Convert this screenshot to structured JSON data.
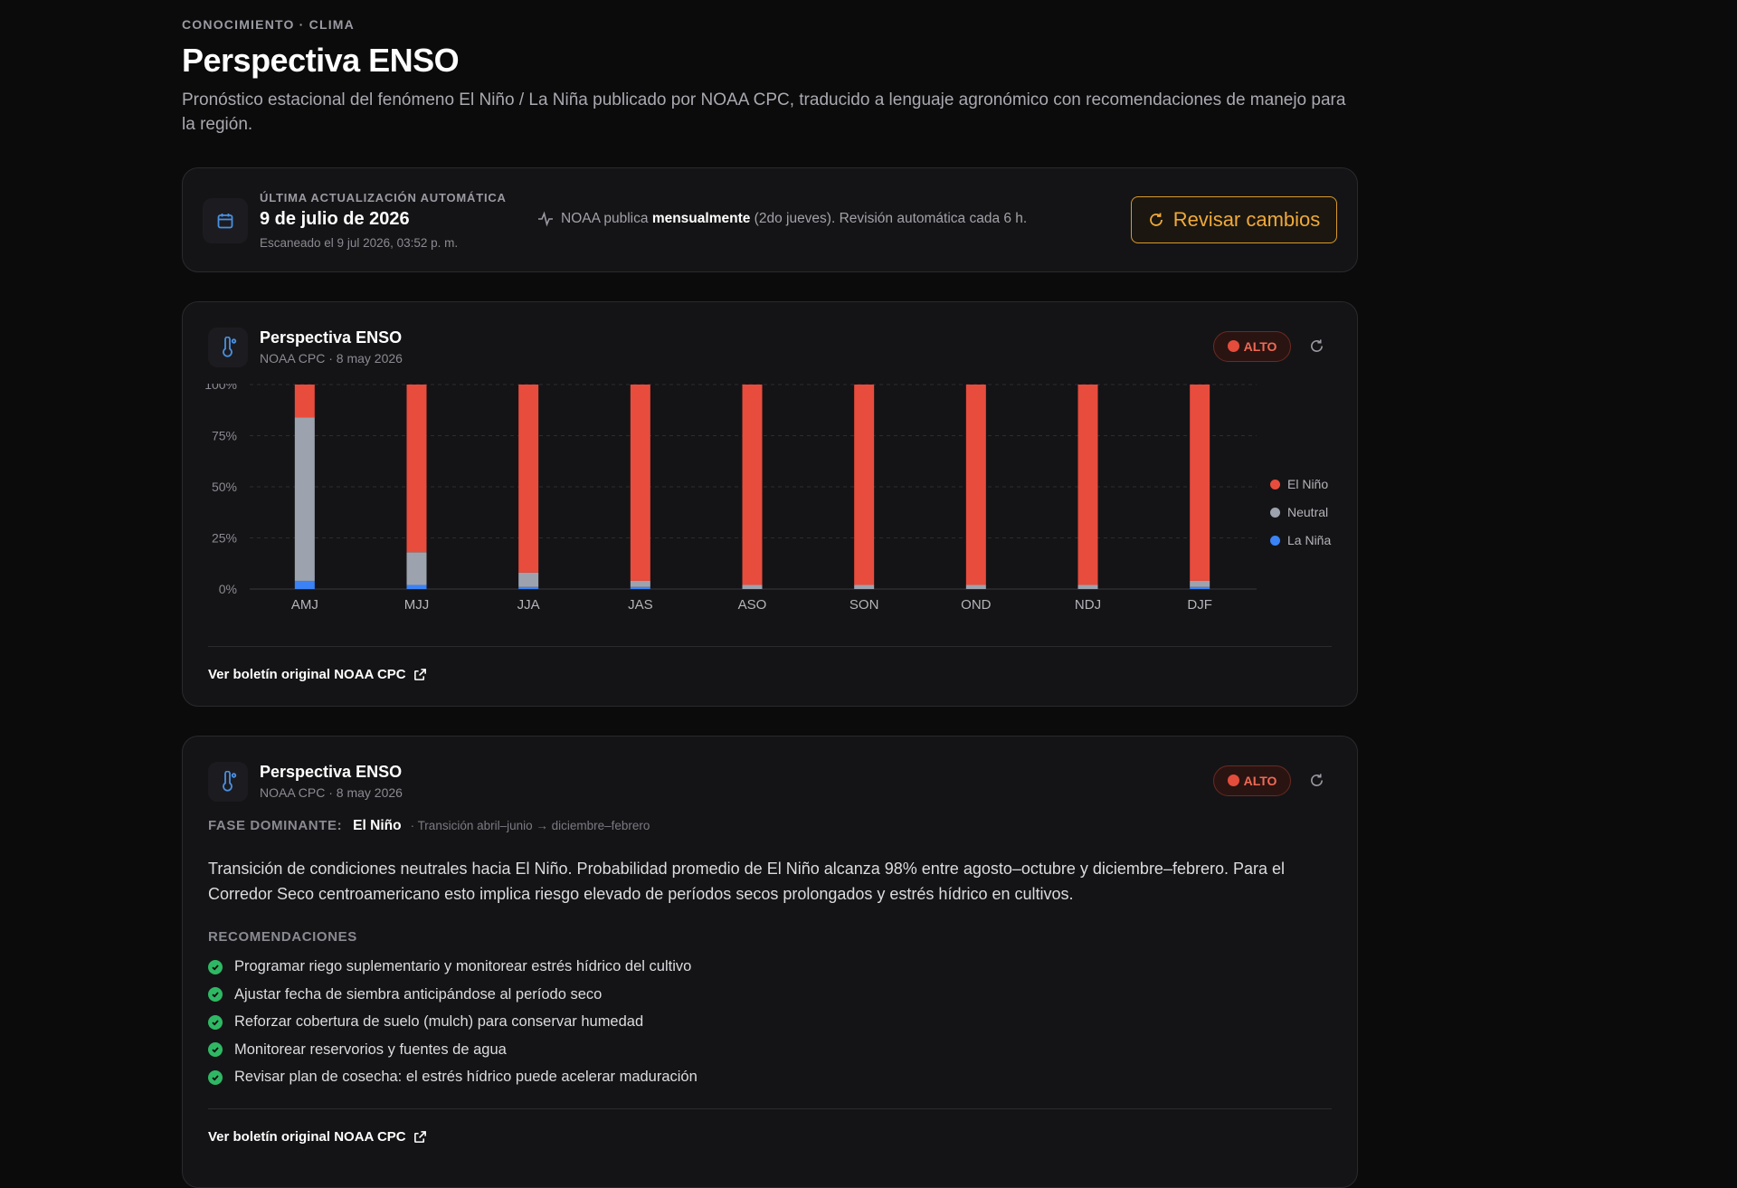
{
  "header": {
    "eyebrow": "CONOCIMIENTO · CLIMA",
    "title": "Perspectiva ENSO",
    "subtitle": "Pronóstico estacional del fenómeno El Niño / La Niña publicado por NOAA CPC, traducido a lenguaje agronómico con recomendaciones de manejo para la región."
  },
  "update": {
    "eyebrow": "ÚLTIMA ACTUALIZACIÓN AUTOMÁTICA",
    "date": "9 de julio de 2026",
    "scanned": "Escaneado el 9 jul 2026, 03:52 p. m.",
    "info_prefix": "NOAA publica",
    "info_bold": "mensualmente",
    "info_suffix": "(2do jueves). Revisión automática cada 6 h.",
    "button_label": "Revisar cambios",
    "accent_color": "#f0a93a"
  },
  "chart_card": {
    "title": "Perspectiva ENSO",
    "meta": "NOAA CPC · 8 may 2026",
    "badge": "ALTO",
    "link": "Ver boletín original NOAA CPC"
  },
  "chart_data": {
    "type": "bar",
    "stacked": true,
    "categories": [
      "AMJ",
      "MJJ",
      "JJA",
      "JAS",
      "ASO",
      "SON",
      "OND",
      "NDJ",
      "DJF"
    ],
    "series": [
      {
        "name": "La Niña",
        "color": "#3b82f6",
        "values": [
          4,
          2,
          1,
          1,
          0,
          0,
          0,
          0,
          1
        ]
      },
      {
        "name": "Neutral",
        "color": "#9ca3af",
        "values": [
          80,
          16,
          7,
          3,
          2,
          2,
          2,
          2,
          3
        ]
      },
      {
        "name": "El Niño",
        "color": "#e84c3d",
        "values": [
          16,
          82,
          92,
          96,
          98,
          98,
          98,
          98,
          96
        ]
      }
    ],
    "legend_order": [
      "El Niño",
      "Neutral",
      "La Niña"
    ],
    "ytick_labels": [
      "100%",
      "75%",
      "50%",
      "25%",
      "0%"
    ],
    "ylim": [
      0,
      100
    ],
    "legend_position": "right",
    "grid": true
  },
  "summary_card": {
    "title": "Perspectiva ENSO",
    "meta": "NOAA CPC · 8 may 2026",
    "badge": "ALTO",
    "fase_label": "FASE DOMINANTE:",
    "fase_value": "El Niño",
    "fase_transition": "· Transición abril–junio → diciembre–febrero",
    "text": "Transición de condiciones neutrales hacia El Niño. Probabilidad promedio de El Niño alcanza 98% entre agosto–octubre y diciembre–febrero. Para el Corredor Seco centroamericano esto implica riesgo elevado de períodos secos prolongados y estrés hídrico en cultivos.",
    "rec_title": "RECOMENDACIONES",
    "recommendations": [
      "Programar riego suplementario y monitorear estrés hídrico del cultivo",
      "Ajustar fecha de siembra anticipándose al período seco",
      "Reforzar cobertura de suelo (mulch) para conservar humedad",
      "Monitorear reservorios y fuentes de agua",
      "Revisar plan de cosecha: el estrés hídrico puede acelerar maduración"
    ],
    "link": "Ver boletín original NOAA CPC"
  }
}
